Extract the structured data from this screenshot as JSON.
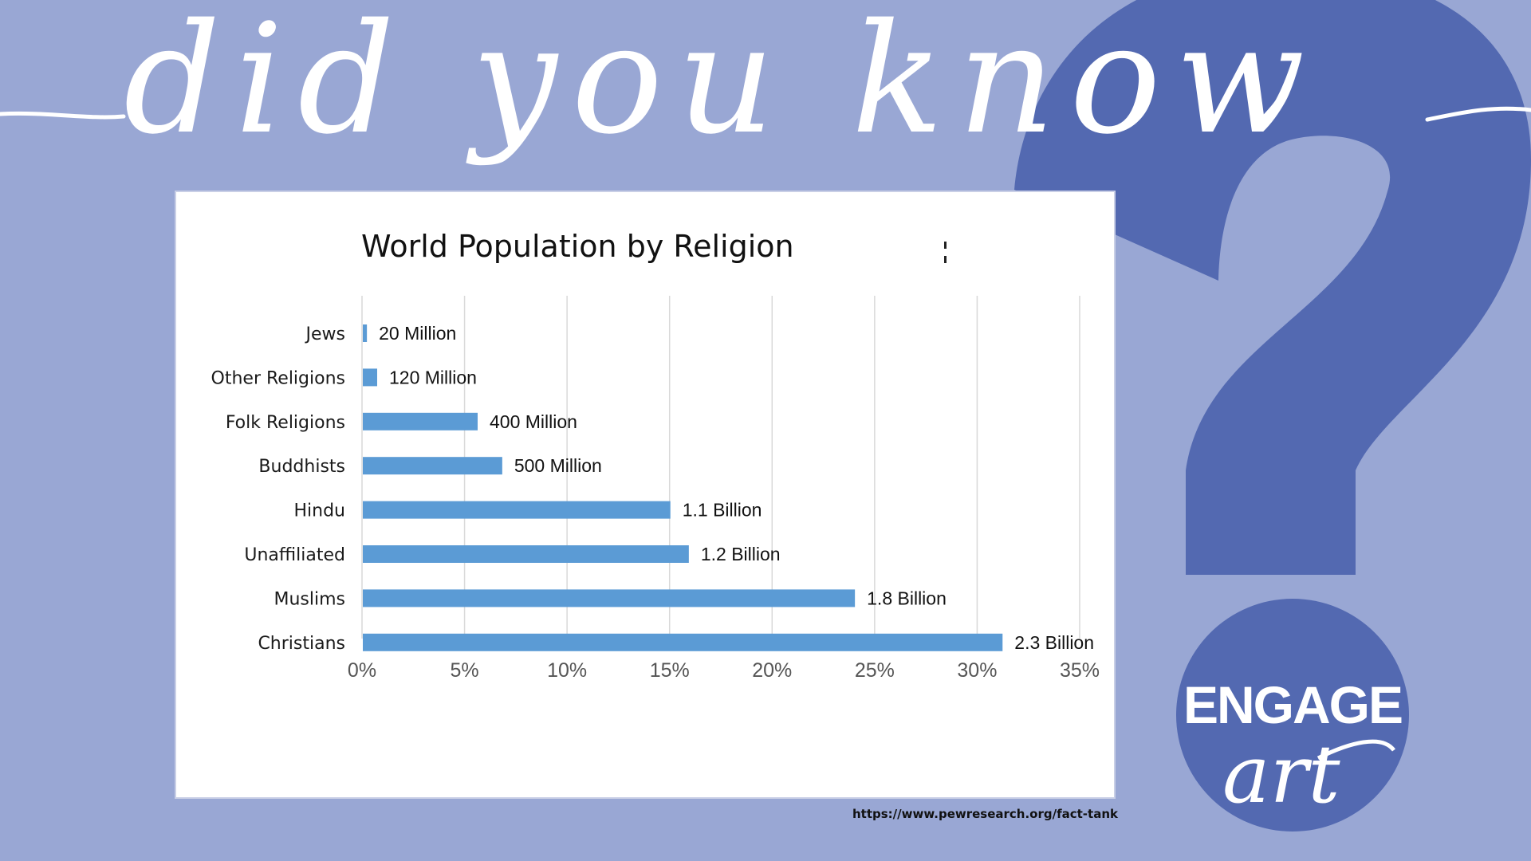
{
  "headline": "did you know",
  "chart_data": {
    "type": "bar",
    "orientation": "horizontal",
    "title": "World Population by Religion",
    "categories": [
      "Jews",
      "Other Religions",
      "Folk Religions",
      "Buddhists",
      "Hindu",
      "Unaffiliated",
      "Muslims",
      "Christians"
    ],
    "values": [
      0.2,
      0.7,
      5.6,
      6.8,
      15.0,
      15.9,
      24.0,
      31.2
    ],
    "value_unit": "%",
    "data_labels": [
      "20 Million",
      "120 Million",
      "400 Million",
      "500 Million",
      "1.1 Billion",
      "1.2 Billion",
      "1.8 Billion",
      "2.3 Billion"
    ],
    "xlim": [
      0,
      35
    ],
    "x_ticks": [
      "0%",
      "5%",
      "10%",
      "15%",
      "20%",
      "25%",
      "30%",
      "35%"
    ],
    "xlabel": "",
    "ylabel": "",
    "grid": "vertical",
    "bar_color": "#5b9bd5",
    "legend": "none"
  },
  "source": "https://www.pewresearch.org/fact-tank",
  "badge": {
    "word": "ENGAGE",
    "script": "art"
  },
  "colors": {
    "background": "#99a7d4",
    "accent": "#5369b1",
    "card": "#ffffff",
    "headline": "#ffffff"
  },
  "icons": {
    "decoration": "question-mark-icon"
  }
}
